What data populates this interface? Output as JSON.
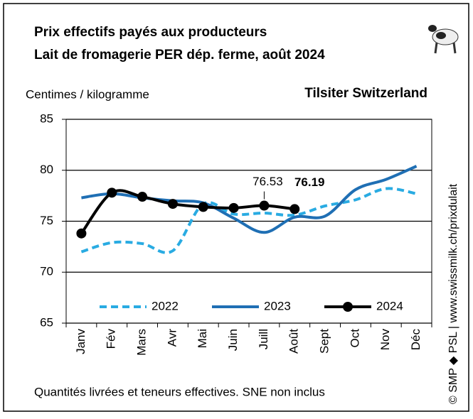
{
  "chart_data": {
    "type": "line",
    "title": "Prix effectifs payés aux producteurs",
    "subtitle": "Lait de fromagerie PER dép. ferme, août 2024",
    "y_label": "Centimes / kilogramme",
    "annotation": "Tilsiter Switzerland",
    "note": "Quantités livrées et teneurs effectives. SNE non inclus",
    "source": "© SMP ◆ PSL | www.swissmilk.ch/prixdulait",
    "categories": [
      "Janv",
      "Fév",
      "Mars",
      "Avr",
      "Mai",
      "Juin",
      "Juill",
      "Août",
      "Sept",
      "Oct",
      "Nov",
      "Déc"
    ],
    "series": [
      {
        "name": "2022",
        "color": "#29abe2",
        "line_style": "dashed",
        "values": [
          72.0,
          72.9,
          72.8,
          72.1,
          76.7,
          75.7,
          75.8,
          75.6,
          76.5,
          77.1,
          78.2,
          77.7
        ]
      },
      {
        "name": "2023",
        "color": "#1f6fb4",
        "line_style": "solid",
        "values": [
          77.3,
          77.7,
          77.3,
          77.0,
          76.8,
          75.3,
          73.9,
          75.4,
          75.5,
          78.1,
          79.1,
          80.4
        ]
      },
      {
        "name": "2024",
        "color": "#000000",
        "line_style": "solid",
        "marker": "circle",
        "values": [
          73.8,
          77.8,
          77.4,
          76.7,
          76.4,
          76.3,
          76.53,
          76.19,
          null,
          null,
          null,
          null
        ],
        "value_labels": [
          null,
          null,
          null,
          null,
          null,
          null,
          "76.53",
          "76.19",
          null,
          null,
          null,
          null
        ]
      }
    ],
    "ylim": [
      65,
      85
    ],
    "yticks": [
      65,
      70,
      75,
      80,
      85
    ],
    "grid": true,
    "legend": "bottom"
  }
}
